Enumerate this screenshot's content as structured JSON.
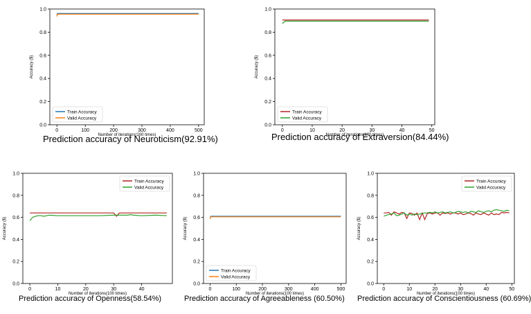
{
  "chart_data": [
    {
      "type": "line",
      "title": "",
      "caption": "Prediction accuracy of Neuroticism(92.91%)",
      "xlabel": "Number of iterations(100 times)",
      "ylabel": "Accuracy ($)",
      "xlim": [
        -25,
        520
      ],
      "ylim": [
        0.0,
        1.0
      ],
      "xticks": [
        0,
        100,
        200,
        300,
        400,
        500
      ],
      "yticks": [
        0.0,
        0.2,
        0.4,
        0.6,
        0.8,
        1.0
      ],
      "legend": "bottom-left",
      "grid": false,
      "series": [
        {
          "name": "Train Accuracy",
          "color": "#1f77b4",
          "x": [
            0,
            2,
            500
          ],
          "y": [
            0.945,
            0.962,
            0.962
          ]
        },
        {
          "name": "Valid Accuracy",
          "color": "#ff7f0e",
          "x": [
            0,
            2,
            500
          ],
          "y": [
            0.935,
            0.955,
            0.955
          ]
        }
      ]
    },
    {
      "type": "line",
      "title": "",
      "caption": "Prediction accuracy of Extraversion(84.44%)",
      "xlabel": "Number of iterations(100 times)",
      "ylabel": "Accuracy ($)",
      "xlim": [
        -2.5,
        51
      ],
      "ylim": [
        0.0,
        1.0
      ],
      "xticks": [
        0,
        10,
        20,
        30,
        40,
        50
      ],
      "yticks": [
        0.0,
        0.2,
        0.4,
        0.6,
        0.8,
        1.0
      ],
      "legend": "bottom-left",
      "grid": false,
      "series": [
        {
          "name": "Train Accuracy",
          "color": "#b22222",
          "x": [
            0,
            49
          ],
          "y": [
            0.905,
            0.905
          ]
        },
        {
          "name": "Valid Accuracy",
          "color": "#2ca02c",
          "x": [
            0,
            1,
            49
          ],
          "y": [
            0.875,
            0.895,
            0.895
          ]
        }
      ]
    },
    {
      "type": "line",
      "title": "",
      "caption": "Prediction accuracy of Openness(58.54%)",
      "xlabel": "Number of iterations(100 times)",
      "ylabel": "Accuracy ($)",
      "xlim": [
        -2.5,
        51
      ],
      "ylim": [
        0.0,
        1.0
      ],
      "xticks": [
        0,
        10,
        20,
        30,
        40
      ],
      "yticks": [
        0.0,
        0.2,
        0.4,
        0.6,
        0.8,
        1.0
      ],
      "legend": "top-right",
      "grid": false,
      "series": [
        {
          "name": "Train Accuracy",
          "color": "#b22222",
          "x": [
            0,
            30,
            31,
            32,
            49
          ],
          "y": [
            0.64,
            0.64,
            0.61,
            0.64,
            0.64
          ]
        },
        {
          "name": "Valid Accuracy",
          "color": "#2ca02c",
          "x": [
            0,
            1,
            2,
            3,
            4,
            5,
            6,
            7,
            10,
            15,
            20,
            25,
            30,
            35,
            36,
            37,
            40,
            45,
            49
          ],
          "y": [
            0.57,
            0.6,
            0.61,
            0.615,
            0.615,
            0.61,
            0.615,
            0.62,
            0.615,
            0.615,
            0.615,
            0.615,
            0.62,
            0.62,
            0.625,
            0.62,
            0.615,
            0.62,
            0.615
          ]
        }
      ]
    },
    {
      "type": "line",
      "title": "",
      "caption": "Prediction accuracy of Agreeableness (60.50%)",
      "xlabel": "Number of iterations(100 times)",
      "ylabel": "Accuracy ($)",
      "xlim": [
        -25,
        520
      ],
      "ylim": [
        0.0,
        1.0
      ],
      "xticks": [
        0,
        100,
        200,
        300,
        400,
        500
      ],
      "yticks": [
        0.0,
        0.2,
        0.4,
        0.6,
        0.8,
        1.0
      ],
      "legend": "bottom-left",
      "grid": false,
      "series": [
        {
          "name": "Train Accuracy",
          "color": "#1f77b4",
          "x": [
            0,
            2,
            500
          ],
          "y": [
            0.59,
            0.61,
            0.61
          ]
        },
        {
          "name": "Valid Accuracy",
          "color": "#ff7f0e",
          "x": [
            0,
            2,
            500
          ],
          "y": [
            0.585,
            0.605,
            0.605
          ]
        }
      ]
    },
    {
      "type": "line",
      "title": "",
      "caption": "Prediction accuracy of Conscientiousness (60.69%)",
      "xlabel": "Number of iterations(100 times)",
      "ylabel": "Accuracy ($)",
      "xlim": [
        -2.5,
        51
      ],
      "ylim": [
        0.0,
        1.0
      ],
      "xticks": [
        0,
        10,
        20,
        30,
        40,
        50
      ],
      "yticks": [
        0.0,
        0.2,
        0.4,
        0.6,
        0.8,
        1.0
      ],
      "legend": "top-right",
      "grid": false,
      "series": [
        {
          "name": "Train Accuracy",
          "color": "#b22222",
          "x": [
            0,
            1,
            2,
            3,
            4,
            5,
            6,
            7,
            8,
            9,
            10,
            11,
            12,
            13,
            14,
            15,
            16,
            17,
            18,
            19,
            20,
            21,
            22,
            23,
            24,
            25,
            26,
            27,
            28,
            29,
            30,
            31,
            32,
            33,
            34,
            35,
            36,
            37,
            38,
            39,
            40,
            41,
            42,
            43,
            44,
            45,
            46,
            47,
            48,
            49
          ],
          "y": [
            0.64,
            0.64,
            0.645,
            0.62,
            0.65,
            0.64,
            0.63,
            0.645,
            0.64,
            0.59,
            0.64,
            0.635,
            0.62,
            0.64,
            0.58,
            0.64,
            0.58,
            0.635,
            0.64,
            0.63,
            0.64,
            0.64,
            0.62,
            0.64,
            0.635,
            0.64,
            0.63,
            0.64,
            0.64,
            0.63,
            0.64,
            0.625,
            0.63,
            0.64,
            0.635,
            0.62,
            0.64,
            0.63,
            0.625,
            0.64,
            0.63,
            0.62,
            0.64,
            0.625,
            0.63,
            0.625,
            0.645,
            0.64,
            0.645,
            0.64
          ]
        },
        {
          "name": "Valid Accuracy",
          "color": "#2ca02c",
          "x": [
            0,
            1,
            2,
            3,
            4,
            5,
            6,
            7,
            8,
            9,
            10,
            11,
            12,
            13,
            14,
            15,
            16,
            17,
            18,
            19,
            20,
            21,
            22,
            23,
            24,
            25,
            26,
            27,
            28,
            29,
            30,
            31,
            32,
            33,
            34,
            35,
            36,
            37,
            38,
            39,
            40,
            41,
            42,
            43,
            44,
            45,
            46,
            47,
            48,
            49
          ],
          "y": [
            0.61,
            0.62,
            0.625,
            0.63,
            0.64,
            0.615,
            0.62,
            0.63,
            0.64,
            0.62,
            0.63,
            0.62,
            0.63,
            0.625,
            0.63,
            0.635,
            0.64,
            0.64,
            0.645,
            0.64,
            0.65,
            0.64,
            0.645,
            0.65,
            0.64,
            0.645,
            0.65,
            0.64,
            0.645,
            0.655,
            0.65,
            0.645,
            0.65,
            0.64,
            0.655,
            0.65,
            0.645,
            0.66,
            0.65,
            0.645,
            0.655,
            0.66,
            0.65,
            0.665,
            0.67,
            0.665,
            0.66,
            0.655,
            0.665,
            0.66
          ]
        }
      ]
    }
  ]
}
